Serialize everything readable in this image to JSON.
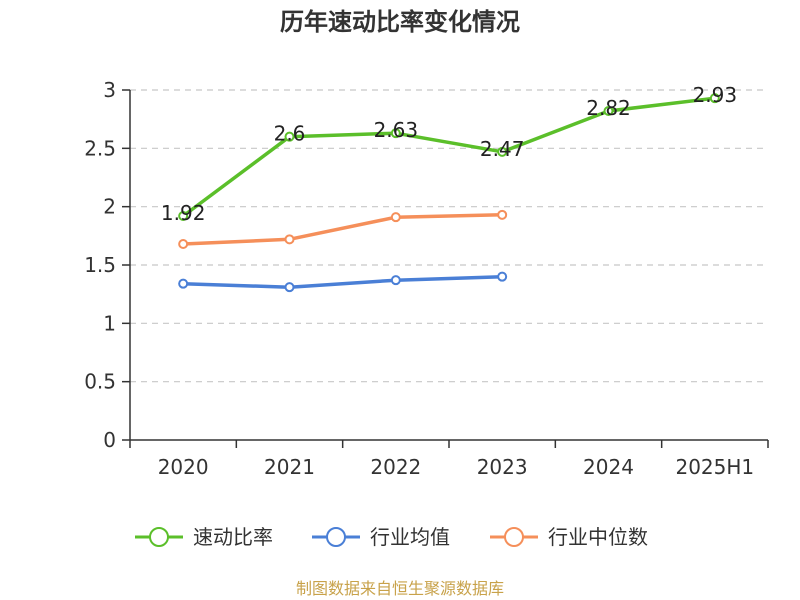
{
  "chart_data": {
    "type": "line",
    "title": "历年速动比率变化情况",
    "categories": [
      "2020",
      "2021",
      "2022",
      "2023",
      "2024",
      "2025H1"
    ],
    "ylim": [
      0,
      3
    ],
    "yticks": [
      "0",
      "0.5",
      "1",
      "1.5",
      "2",
      "2.5",
      "3"
    ],
    "grid": true,
    "legend_position": "bottom",
    "series": [
      {
        "name": "速动比率",
        "color": "#5bbf2a",
        "values": [
          1.92,
          2.6,
          2.63,
          2.47,
          2.82,
          2.93
        ],
        "labels": [
          "1.92",
          "2.6",
          "2.63",
          "2.47",
          "2.82",
          "2.93"
        ]
      },
      {
        "name": "行业均值",
        "color": "#4a7fd6",
        "values": [
          1.34,
          1.31,
          1.37,
          1.4,
          null,
          null
        ]
      },
      {
        "name": "行业中位数",
        "color": "#f58f5a",
        "values": [
          1.68,
          1.72,
          1.91,
          1.93,
          null,
          null
        ]
      }
    ]
  },
  "source": "制图数据来自恒生聚源数据库"
}
